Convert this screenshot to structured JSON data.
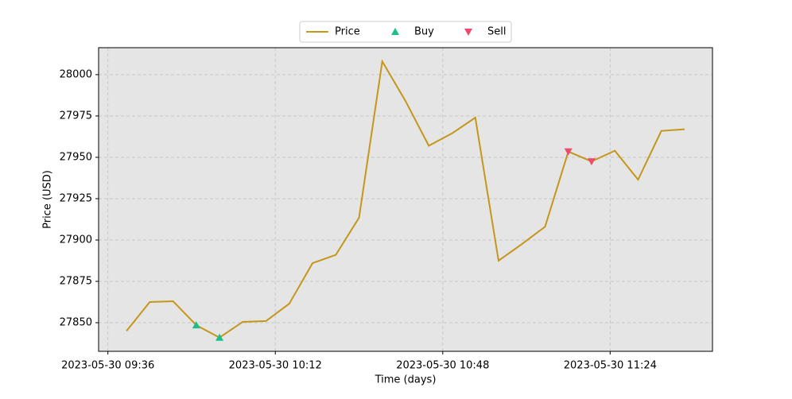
{
  "chart_data": {
    "type": "line",
    "x_label": "Time (days)",
    "y_label": "Price (USD)",
    "series": [
      {
        "name": "Price",
        "color": "#c4961a",
        "marker": "line",
        "x": [
          "2023-05-30 09:40",
          "2023-05-30 09:45",
          "2023-05-30 09:50",
          "2023-05-30 09:55",
          "2023-05-30 10:00",
          "2023-05-30 10:05",
          "2023-05-30 10:10",
          "2023-05-30 10:15",
          "2023-05-30 10:20",
          "2023-05-30 10:25",
          "2023-05-30 10:30",
          "2023-05-30 10:35",
          "2023-05-30 10:40",
          "2023-05-30 10:45",
          "2023-05-30 10:50",
          "2023-05-30 10:55",
          "2023-05-30 11:00",
          "2023-05-30 11:05",
          "2023-05-30 11:10",
          "2023-05-30 11:15",
          "2023-05-30 11:20",
          "2023-05-30 11:25",
          "2023-05-30 11:30",
          "2023-05-30 11:35",
          "2023-05-30 11:40"
        ],
        "values": [
          27845,
          27862.5,
          27863,
          27848.5,
          27841,
          27850.5,
          27851,
          27861.5,
          27886,
          27891,
          27913.5,
          28008,
          27984,
          27957,
          27964.5,
          27974,
          27887.5,
          27897.5,
          27908,
          27953.5,
          27947.5,
          27954,
          27936.5,
          27966,
          27967
        ]
      },
      {
        "name": "Buy",
        "color": "#1dbf86",
        "marker": "up",
        "x": [
          "2023-05-30 09:55",
          "2023-05-30 10:00"
        ],
        "values": [
          27848.5,
          27841
        ]
      },
      {
        "name": "Sell",
        "color": "#ef4c6a",
        "marker": "down",
        "x": [
          "2023-05-30 11:15",
          "2023-05-30 11:20"
        ],
        "values": [
          27953.5,
          27947.5
        ]
      }
    ],
    "xlim": [
      "2023-05-30 09:34",
      "2023-05-30 11:46"
    ],
    "xticks": [
      "2023-05-30 09:36",
      "2023-05-30 10:12",
      "2023-05-30 10:48",
      "2023-05-30 11:24"
    ],
    "ylim": [
      27832.7,
      28016.3
    ],
    "yticks": [
      27850,
      27875,
      27900,
      27925,
      27950,
      27975,
      28000
    ],
    "grid": true,
    "legend": "top"
  }
}
